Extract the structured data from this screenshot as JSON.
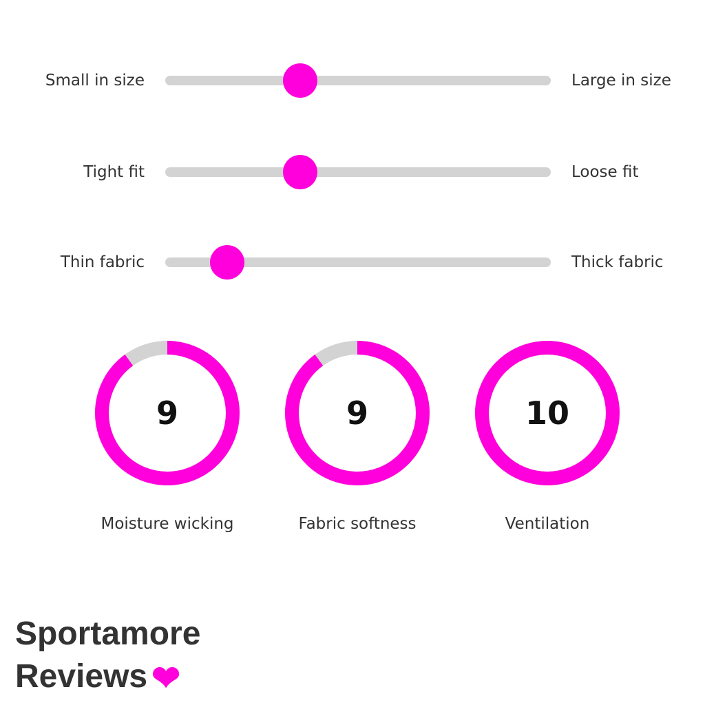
{
  "accent_color": "#ff00dc",
  "track_color": "#d3d3d3",
  "sliders": [
    {
      "left_label": "Small in size",
      "right_label": "Large in size",
      "value": 0.35
    },
    {
      "left_label": "Tight fit",
      "right_label": "Loose fit",
      "value": 0.35
    },
    {
      "left_label": "Thin fabric",
      "right_label": "Thick fabric",
      "value": 0.16
    }
  ],
  "ratings": [
    {
      "label": "Moisture wicking",
      "score": "9",
      "max": 10
    },
    {
      "label": "Fabric softness",
      "score": "9",
      "max": 10
    },
    {
      "label": "Ventilation",
      "score": "10",
      "max": 10
    }
  ],
  "brand": {
    "line1": "Sportamore",
    "line2": "Reviews",
    "icon": "heart-icon"
  }
}
